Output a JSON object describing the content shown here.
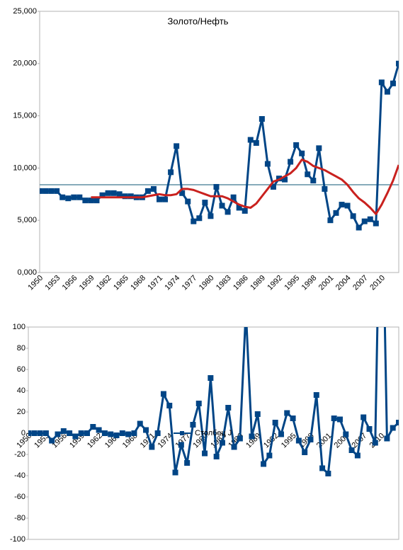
{
  "chart_data": [
    {
      "type": "line",
      "title": "Золото/Нефть",
      "categories": [
        "1950",
        null,
        null,
        "1953",
        null,
        null,
        "1956",
        null,
        null,
        "1959",
        null,
        null,
        "1962",
        null,
        null,
        "1965",
        null,
        null,
        "1968",
        null,
        null,
        "1971",
        null,
        null,
        "1974",
        null,
        null,
        "1977",
        null,
        null,
        "1980",
        null,
        null,
        "1983",
        null,
        null,
        "1986",
        null,
        null,
        "1989",
        null,
        null,
        "1992",
        null,
        null,
        "1995",
        null,
        null,
        "1998",
        null,
        null,
        "2001",
        null,
        null,
        "2004",
        null,
        null,
        "2007",
        null,
        null,
        "2010",
        null,
        null,
        null
      ],
      "series": [
        {
          "color": "#004586",
          "markers": true,
          "values": [
            7.8,
            7.8,
            7.8,
            7.8,
            7.2,
            7.1,
            7.2,
            7.2,
            6.9,
            6.9,
            6.9,
            7.4,
            7.6,
            7.6,
            7.5,
            7.3,
            7.3,
            7.2,
            7.2,
            7.8,
            8.0,
            7.0,
            7.0,
            9.6,
            12.1,
            7.6,
            6.8,
            4.9,
            5.2,
            6.7,
            5.4,
            8.2,
            6.4,
            5.8,
            7.2,
            6.2,
            5.9,
            12.7,
            12.4,
            14.7,
            10.4,
            8.2,
            9.0,
            8.9,
            10.6,
            12.2,
            11.4,
            9.4,
            8.8,
            11.9,
            8.0,
            5.0,
            5.7,
            6.5,
            6.4,
            5.4,
            4.3,
            4.9,
            5.1,
            4.7,
            18.2,
            17.3,
            18.1,
            20.0
          ]
        },
        {
          "color": "#c9211e",
          "markers": false,
          "values": [
            null,
            null,
            null,
            null,
            null,
            null,
            null,
            null,
            null,
            7.2,
            7.2,
            7.2,
            7.2,
            7.2,
            7.2,
            7.2,
            7.2,
            7.2,
            7.2,
            7.3,
            7.4,
            7.5,
            7.4,
            7.4,
            7.5,
            8.0,
            8.0,
            7.9,
            7.7,
            7.5,
            7.3,
            7.3,
            7.3,
            7.1,
            6.8,
            6.5,
            6.3,
            6.2,
            6.6,
            7.3,
            8.0,
            8.7,
            8.9,
            9.2,
            9.5,
            10.0,
            10.8,
            10.6,
            10.2,
            10.0,
            9.8,
            9.5,
            9.2,
            8.9,
            8.4,
            7.7,
            7.1,
            6.7,
            6.2,
            5.6,
            6.5,
            7.6,
            8.8,
            10.3
          ]
        }
      ],
      "reference_line": {
        "value": 8.4,
        "color": "#5f8fa3"
      },
      "ylim": [
        0,
        25
      ],
      "yticks": [
        {
          "value": 0,
          "label": "0,000"
        },
        {
          "value": 5,
          "label": "5,000"
        },
        {
          "value": 10,
          "label": "10,000"
        },
        {
          "value": 15,
          "label": "15,000"
        },
        {
          "value": 20,
          "label": "20,000"
        },
        {
          "value": 25,
          "label": "25,000"
        }
      ]
    },
    {
      "type": "line",
      "categories": [
        "1950",
        null,
        null,
        "1953",
        null,
        null,
        "1956",
        null,
        null,
        "1959",
        null,
        null,
        "1962",
        null,
        null,
        "1965",
        null,
        null,
        "1968",
        null,
        null,
        "1971",
        null,
        null,
        "1974",
        null,
        null,
        "1977",
        null,
        null,
        "1980",
        null,
        null,
        "1983",
        null,
        null,
        "1986",
        null,
        null,
        "1989",
        null,
        null,
        "1992",
        null,
        null,
        "1995",
        null,
        null,
        "1998",
        null,
        null,
        "2001",
        null,
        null,
        "2004",
        null,
        null,
        "2007",
        null,
        null,
        "2010",
        null,
        null,
        null
      ],
      "series": [
        {
          "name": "Столбец J",
          "color": "#004586",
          "markers": true,
          "values": [
            0,
            0,
            0,
            0,
            -7,
            -1,
            2,
            0,
            -3,
            0,
            0,
            6,
            3,
            0,
            -1,
            -2,
            0,
            -1,
            0,
            9,
            3,
            -13,
            0,
            37,
            26,
            -37,
            -11,
            -28,
            8,
            28,
            -19,
            52,
            -22,
            -9,
            24,
            -13,
            -5,
            115,
            -3,
            18,
            -29,
            -21,
            10,
            -1,
            19,
            14,
            -7,
            -18,
            -6,
            36,
            -33,
            -38,
            14,
            13,
            -1,
            -16,
            -21,
            15,
            4,
            -9,
            290,
            -5,
            5,
            10
          ]
        }
      ],
      "ylim": [
        -100,
        100
      ],
      "yticks": [
        -100,
        -80,
        -60,
        -40,
        -20,
        0,
        20,
        40,
        60,
        80,
        100
      ]
    }
  ]
}
